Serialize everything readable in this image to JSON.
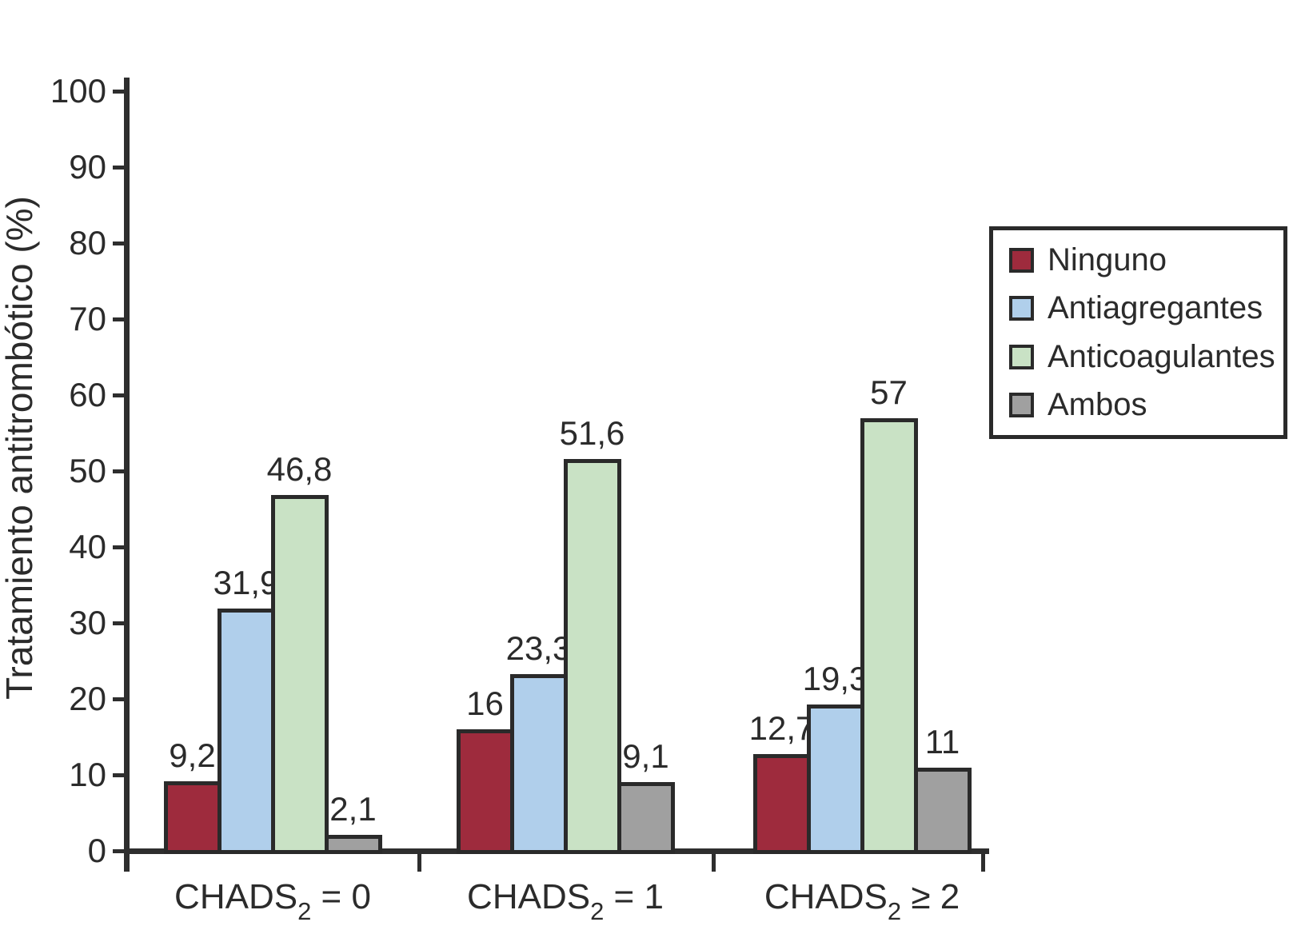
{
  "figure": {
    "background_color": "#ffffff",
    "text_color": "#2b2b2b",
    "axis_color": "#2e2e2e",
    "bar_border_color": "#2a2a2a"
  },
  "chart_data": {
    "type": "bar",
    "title": "",
    "xlabel": "",
    "ylabel": "Tratamiento antitrombótico (%)",
    "ylim": [
      0,
      100
    ],
    "yticks": [
      0,
      10,
      20,
      30,
      40,
      50,
      60,
      70,
      80,
      90,
      100
    ],
    "grid": false,
    "legend_position": "upper right",
    "categories": [
      {
        "prefix": "CHADS",
        "subscript": "2",
        "suffix": " = 0"
      },
      {
        "prefix": "CHADS",
        "subscript": "2",
        "suffix": " = 1"
      },
      {
        "prefix": "CHADS",
        "subscript": "2",
        "suffix": " ≥ 2"
      }
    ],
    "series": [
      {
        "name": "Ninguno",
        "color": "#9E2B3D",
        "values": [
          9.2,
          16,
          12.7
        ],
        "value_labels": [
          "9,2",
          "16",
          "12,7"
        ]
      },
      {
        "name": "Antiagregantes",
        "color": "#B0CFEB",
        "values": [
          31.9,
          23.3,
          19.3
        ],
        "value_labels": [
          "31,9",
          "23,3",
          "19,3"
        ]
      },
      {
        "name": "Anticoagulantes",
        "color": "#C9E2C5",
        "values": [
          46.8,
          51.6,
          57
        ],
        "value_labels": [
          "46,8",
          "51,6",
          "57"
        ]
      },
      {
        "name": "Ambos",
        "color": "#A0A0A0",
        "values": [
          2.1,
          9.1,
          11
        ],
        "value_labels": [
          "2,1",
          "9,1",
          "11"
        ]
      }
    ]
  }
}
